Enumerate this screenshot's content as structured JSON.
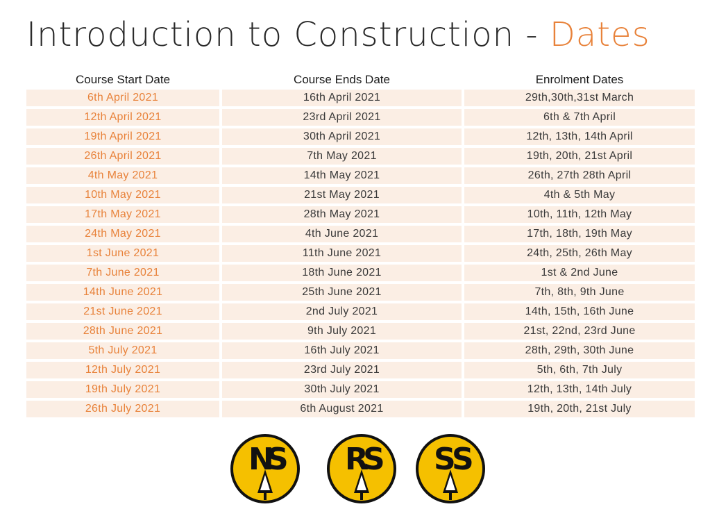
{
  "title": {
    "main": "Introduction to Construction - ",
    "accent": "Dates"
  },
  "table": {
    "headers": [
      "Course Start Date",
      "Course Ends Date",
      "Enrolment Dates"
    ],
    "rows": [
      [
        "6th April 2021",
        "16th April 2021",
        "29th,30th,31st March"
      ],
      [
        "12th April 2021",
        "23rd April 2021",
        "6th & 7th April"
      ],
      [
        "19th April 2021",
        "30th April 2021",
        "12th, 13th, 14th April"
      ],
      [
        "26th April 2021",
        "7th May 2021",
        "19th, 20th, 21st April"
      ],
      [
        "4th May 2021",
        "14th May 2021",
        "26th, 27th 28th April"
      ],
      [
        "10th May 2021",
        "21st May 2021",
        "4th & 5th May"
      ],
      [
        "17th May 2021",
        "28th May 2021",
        "10th, 11th, 12th May"
      ],
      [
        "24th May 2021",
        "4th June 2021",
        "17th, 18th, 19th May"
      ],
      [
        "1st June 2021",
        "11th June 2021",
        "24th, 25th, 26th May"
      ],
      [
        "7th June 2021",
        "18th June 2021",
        "1st & 2nd June"
      ],
      [
        "14th June 2021",
        "25th June 2021",
        "7th, 8th, 9th June"
      ],
      [
        "21st June 2021",
        "2nd July 2021",
        "14th, 15th, 16th June"
      ],
      [
        "28th June 2021",
        "9th July 2021",
        "21st, 22nd, 23rd June"
      ],
      [
        "5th July 2021",
        "16th July 2021",
        "28th, 29th, 30th June"
      ],
      [
        "12th July 2021",
        "23rd July 2021",
        "5th, 6th, 7th July"
      ],
      [
        "19th July 2021",
        "30th July 2021",
        "12th, 13th, 14th July"
      ],
      [
        "26th July 2021",
        "6th August 2021",
        "19th, 20th, 21st July"
      ]
    ]
  },
  "logos": [
    {
      "letters": [
        "N",
        "S"
      ],
      "icon": "nsa-logo-icon"
    },
    {
      "letters": [
        "R",
        "S"
      ],
      "icon": "rsa-logo-icon"
    },
    {
      "letters": [
        "S",
        "S"
      ],
      "icon": "ssa-logo-icon"
    }
  ],
  "colors": {
    "accent": "#e8823a",
    "row_bg": "#fbeee4",
    "logo_fill": "#f5c000",
    "logo_ink": "#111111"
  }
}
